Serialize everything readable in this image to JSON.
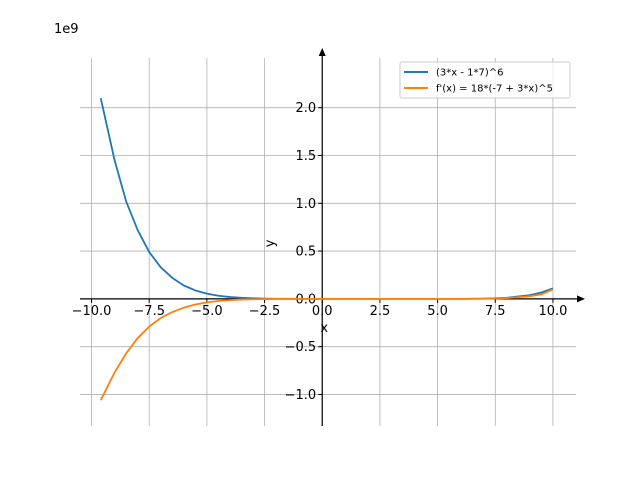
{
  "chart_data": {
    "type": "line",
    "offset_text": "1e9",
    "xlabel": "x",
    "ylabel": "y",
    "xlim": [
      -10.5,
      11.0
    ],
    "ylim": [
      -1.33,
      2.52
    ],
    "x_ticks": [
      -10.0,
      -7.5,
      -5.0,
      -2.5,
      0.0,
      2.5,
      5.0,
      7.5,
      10.0
    ],
    "x_tick_labels": [
      "−10.0",
      "−7.5",
      "−5.0",
      "−2.5",
      "0.0",
      "2.5",
      "5.0",
      "7.5",
      "10.0"
    ],
    "y_ticks": [
      -1.0,
      -0.5,
      0.0,
      0.5,
      1.0,
      1.5,
      2.0
    ],
    "y_tick_labels": [
      "−1.0",
      "−0.5",
      "0.0",
      "0.5",
      "1.0",
      "1.5",
      "2.0"
    ],
    "grid": true,
    "legend_position": "top-right",
    "series": [
      {
        "name": "(3*x - 1*7)^6",
        "color": "#1f77b4",
        "x": [
          -9.6,
          -9.0,
          -8.5,
          -8.0,
          -7.5,
          -7.0,
          -6.5,
          -6.0,
          -5.5,
          -5.0,
          -4.5,
          -4.0,
          -3.5,
          -3.0,
          -2.5,
          -2.0,
          -1.5,
          -1.0,
          0.0,
          2.0,
          4.0,
          5.0,
          6.0,
          7.0,
          8.0,
          9.0,
          9.5,
          10.0
        ],
        "y": [
          2.1,
          1.45,
          1.02,
          0.72,
          0.49,
          0.33,
          0.22,
          0.14,
          0.088,
          0.055,
          0.033,
          0.019,
          0.011,
          0.0059,
          0.003,
          0.0015,
          0.0007,
          0.00026,
          0.0,
          0.0,
          0.0,
          0.0,
          0.00034,
          0.0025,
          0.0115,
          0.039,
          0.067,
          0.11
        ]
      },
      {
        "name": "f'(x) = 18*(-7 + 3*x)^5",
        "color": "#ff7f0e",
        "x": [
          -9.6,
          -9.0,
          -8.5,
          -8.0,
          -7.5,
          -7.0,
          -6.5,
          -6.0,
          -5.5,
          -5.0,
          -4.5,
          -4.0,
          -3.5,
          -3.0,
          -2.5,
          -2.0,
          -1.5,
          -1.0,
          0.0,
          2.0,
          4.0,
          5.0,
          6.0,
          7.0,
          8.0,
          9.0,
          9.5,
          10.0
        ],
        "y": [
          -1.06,
          -0.77,
          -0.57,
          -0.41,
          -0.29,
          -0.2,
          -0.138,
          -0.092,
          -0.059,
          -0.037,
          -0.022,
          -0.013,
          -0.0072,
          -0.0038,
          -0.0019,
          -0.0009,
          -0.0004,
          -0.00017,
          0.0,
          0.0,
          0.0,
          0.0,
          0.0003,
          0.0017,
          0.008,
          0.027,
          0.047,
          0.1
        ]
      }
    ]
  }
}
